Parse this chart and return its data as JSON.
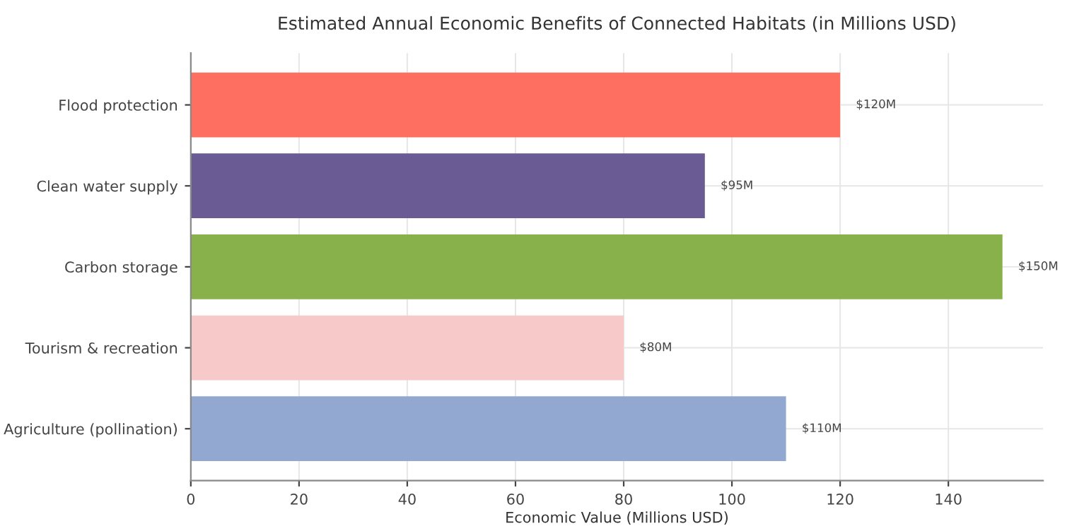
{
  "chart_data": {
    "type": "bar",
    "orientation": "horizontal",
    "title": "Estimated Annual Economic Benefits of Connected Habitats (in Millions USD)",
    "xlabel": "Economic Value (Millions USD)",
    "categories": [
      "Flood protection",
      "Clean water supply",
      "Carbon storage",
      "Tourism & recreation",
      "Agriculture (pollination)"
    ],
    "values": [
      120,
      95,
      150,
      80,
      110
    ],
    "colors": [
      "#ff6f61",
      "#6b5b95",
      "#88b04b",
      "#f7cac9",
      "#92a8d1"
    ],
    "value_labels": [
      "$120M",
      "$95M",
      "$150M",
      "$80M",
      "$110M"
    ],
    "xlim": [
      0,
      157.5
    ],
    "xticks": [
      0,
      20,
      40,
      60,
      80,
      100,
      120,
      140
    ],
    "grid": true
  }
}
